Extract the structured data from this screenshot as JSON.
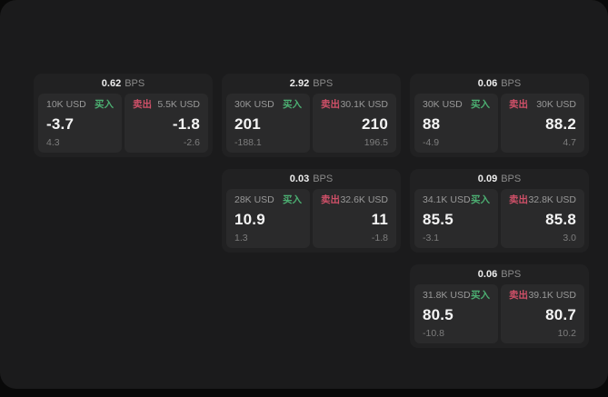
{
  "colors": {
    "backdrop": "#090909",
    "window_bg": "#1b1b1c",
    "card_bg": "#212122",
    "panel_bg": "#2a2a2b",
    "buy_green": "#4caf72",
    "sell_red": "#cf5068",
    "value_white": "#f4f4f4",
    "muted_gray": "#999999"
  },
  "labels": {
    "bps": "BPS",
    "buy": "买入",
    "sell": "卖出"
  },
  "cards": [
    {
      "bps": "0.62",
      "buy": {
        "amount": "10K USD",
        "value": "-3.7",
        "delta": "4.3"
      },
      "sell": {
        "amount": "5.5K USD",
        "value": "-1.8",
        "delta": "-2.6"
      }
    },
    {
      "bps": "2.92",
      "buy": {
        "amount": "30K USD",
        "value": "201",
        "delta": "-188.1"
      },
      "sell": {
        "amount": "30.1K USD",
        "value": "210",
        "delta": "196.5"
      }
    },
    {
      "bps": "0.06",
      "buy": {
        "amount": "30K USD",
        "value": "88",
        "delta": "-4.9"
      },
      "sell": {
        "amount": "30K USD",
        "value": "88.2",
        "delta": "4.7"
      }
    },
    {
      "bps": "0.03",
      "buy": {
        "amount": "28K USD",
        "value": "10.9",
        "delta": "1.3"
      },
      "sell": {
        "amount": "32.6K USD",
        "value": "11",
        "delta": "-1.8"
      }
    },
    {
      "bps": "0.09",
      "buy": {
        "amount": "34.1K USD",
        "value": "85.5",
        "delta": "-3.1"
      },
      "sell": {
        "amount": "32.8K USD",
        "value": "85.8",
        "delta": "3.0"
      }
    },
    {
      "bps": "0.06",
      "buy": {
        "amount": "31.8K USD",
        "value": "80.5",
        "delta": "-10.8"
      },
      "sell": {
        "amount": "39.1K USD",
        "value": "80.7",
        "delta": "10.2"
      }
    }
  ]
}
